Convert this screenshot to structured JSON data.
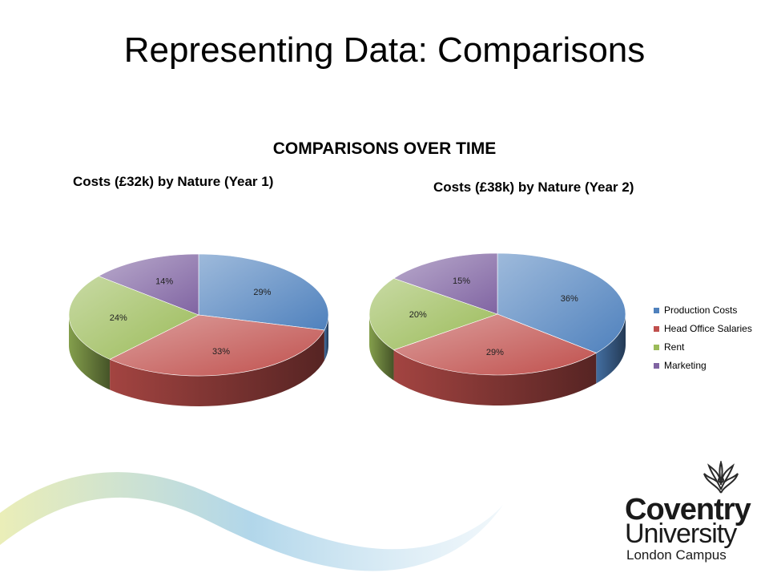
{
  "slide": {
    "title": "Representing Data: Comparisons"
  },
  "section": {
    "heading": "COMPARISONS OVER TIME"
  },
  "colors": {
    "production": "#4f81bd",
    "salaries": "#c0504d",
    "rent": "#9bbb59",
    "marketing": "#8064a2"
  },
  "legend": {
    "items": [
      "Production Costs",
      "Head Office Salaries",
      "Rent",
      "Marketing"
    ]
  },
  "chart_data": [
    {
      "type": "pie",
      "title": "Costs (£32k) by Nature (Year 1)",
      "categories": [
        "Production Costs",
        "Head Office Salaries",
        "Rent",
        "Marketing"
      ],
      "values": [
        29,
        33,
        24,
        14
      ],
      "labels": [
        "29%",
        "33%",
        "24%",
        "14%"
      ]
    },
    {
      "type": "pie",
      "title": "Costs (£38k) by Nature (Year 2)",
      "categories": [
        "Production Costs",
        "Head Office Salaries",
        "Rent",
        "Marketing"
      ],
      "values": [
        36,
        29,
        20,
        15
      ],
      "labels": [
        "36%",
        "29%",
        "20%",
        "15%"
      ],
      "legend": "right"
    }
  ],
  "logo": {
    "line1": "Coventry",
    "line2": "University",
    "line3": "London Campus"
  }
}
